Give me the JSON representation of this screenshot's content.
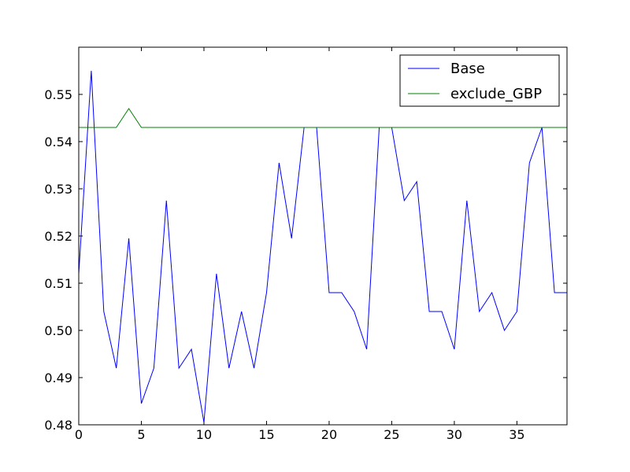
{
  "chart_data": {
    "type": "line",
    "title": "",
    "xlabel": "",
    "ylabel": "",
    "xlim": [
      0,
      39
    ],
    "ylim": [
      0.48,
      0.56
    ],
    "grid": false,
    "legend_placement": "top-right",
    "xticks": [
      0,
      5,
      10,
      15,
      20,
      25,
      30,
      35
    ],
    "xtick_labels": [
      "0",
      "5",
      "10",
      "15",
      "20",
      "25",
      "30",
      "35"
    ],
    "yticks": [
      0.48,
      0.49,
      0.5,
      0.51,
      0.52,
      0.53,
      0.54,
      0.55
    ],
    "ytick_labels": [
      "0.48",
      "0.49",
      "0.50",
      "0.51",
      "0.52",
      "0.53",
      "0.54",
      "0.55"
    ],
    "x": [
      0,
      1,
      2,
      3,
      4,
      5,
      6,
      7,
      8,
      9,
      10,
      11,
      12,
      13,
      14,
      15,
      16,
      17,
      18,
      19,
      20,
      21,
      22,
      23,
      24,
      25,
      26,
      27,
      28,
      29,
      30,
      31,
      32,
      33,
      34,
      35,
      36,
      37,
      38,
      39
    ],
    "series": [
      {
        "name": "Base",
        "color": "#0000ff",
        "values": [
          0.512,
          0.555,
          0.504,
          0.492,
          0.5195,
          0.4845,
          0.492,
          0.5275,
          0.492,
          0.496,
          0.4805,
          0.512,
          0.492,
          0.504,
          0.492,
          0.508,
          0.5355,
          0.5195,
          0.543,
          0.543,
          0.508,
          0.508,
          0.504,
          0.496,
          0.543,
          0.543,
          0.5275,
          0.5315,
          0.504,
          0.504,
          0.496,
          0.5275,
          0.504,
          0.508,
          0.5,
          0.504,
          0.5355,
          0.543,
          0.508,
          0.508
        ]
      },
      {
        "name": "exclude_GBP",
        "color": "#008000",
        "values": [
          0.543,
          0.543,
          0.543,
          0.543,
          0.547,
          0.543,
          0.543,
          0.543,
          0.543,
          0.543,
          0.543,
          0.543,
          0.543,
          0.543,
          0.543,
          0.543,
          0.543,
          0.543,
          0.543,
          0.543,
          0.543,
          0.543,
          0.543,
          0.543,
          0.543,
          0.543,
          0.543,
          0.543,
          0.543,
          0.543,
          0.543,
          0.543,
          0.543,
          0.543,
          0.543,
          0.543,
          0.543,
          0.543,
          0.543,
          0.543
        ]
      }
    ]
  }
}
